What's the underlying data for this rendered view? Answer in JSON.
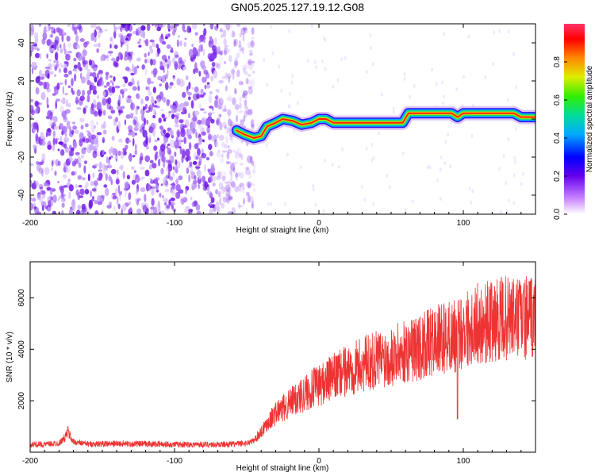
{
  "title": "GN05.2025.127.19.12.G08",
  "chart_data": [
    {
      "type": "heatmap",
      "xlabel": "Height of straight line (km)",
      "ylabel": "Frequency (Hz)",
      "xlim": [
        -200,
        150
      ],
      "ylim": [
        -50,
        50
      ],
      "x_ticks": [
        -200,
        -100,
        0,
        100
      ],
      "y_ticks": [
        -40,
        -20,
        0,
        20,
        40
      ],
      "colorbar": {
        "label": "Normalized spectral amplitude",
        "range": [
          0,
          1
        ],
        "ticks": [
          "0.0",
          "0.2",
          "0.4",
          "0.6",
          "0.8"
        ]
      },
      "noise_region": {
        "x_range": [
          -200,
          -45
        ],
        "level": 0.15
      },
      "ridge": [
        {
          "x": -57,
          "y": -6
        },
        {
          "x": -52,
          "y": -8
        },
        {
          "x": -45,
          "y": -10
        },
        {
          "x": -40,
          "y": -9
        },
        {
          "x": -36,
          "y": -4
        },
        {
          "x": -30,
          "y": -2
        },
        {
          "x": -25,
          "y": 0
        },
        {
          "x": -18,
          "y": -1
        },
        {
          "x": -12,
          "y": -3
        },
        {
          "x": -5,
          "y": -2
        },
        {
          "x": 0,
          "y": 0
        },
        {
          "x": 5,
          "y": 0
        },
        {
          "x": 10,
          "y": -2
        },
        {
          "x": 30,
          "y": -2
        },
        {
          "x": 58,
          "y": -2
        },
        {
          "x": 62,
          "y": 3
        },
        {
          "x": 80,
          "y": 3
        },
        {
          "x": 92,
          "y": 3
        },
        {
          "x": 96,
          "y": 1
        },
        {
          "x": 100,
          "y": 3
        },
        {
          "x": 120,
          "y": 3
        },
        {
          "x": 135,
          "y": 3
        },
        {
          "x": 140,
          "y": 1
        },
        {
          "x": 150,
          "y": 1
        }
      ]
    },
    {
      "type": "line",
      "xlabel": "Height of straight line (km)",
      "ylabel": "SNR (10 * v/v)",
      "xlim": [
        -200,
        150
      ],
      "ylim": [
        0,
        7400
      ],
      "x_ticks": [
        -200,
        -100,
        0,
        100
      ],
      "y_ticks": [
        2000,
        4000,
        6000
      ],
      "color": "#ee3333",
      "series": [
        {
          "x": [
            -200,
            -190,
            -180,
            -176,
            -174,
            -170,
            -160,
            -150,
            -140,
            -130,
            -120,
            -110,
            -100,
            -90,
            -80,
            -70,
            -60,
            -50,
            -45,
            -40,
            -35,
            -30,
            -20,
            -10,
            0,
            10,
            20,
            30,
            40,
            50,
            60,
            70,
            80,
            90,
            96,
            100,
            110,
            120,
            130,
            140,
            150
          ],
          "values": [
            300,
            300,
            350,
            550,
            800,
            400,
            320,
            320,
            330,
            320,
            320,
            310,
            300,
            300,
            300,
            300,
            310,
            350,
            450,
            800,
            1200,
            1500,
            1900,
            2300,
            2600,
            2900,
            3200,
            3400,
            3600,
            3750,
            3900,
            4100,
            4300,
            4500,
            4500,
            4800,
            5000,
            5100,
            5200,
            5200,
            5200
          ]
        }
      ]
    }
  ]
}
